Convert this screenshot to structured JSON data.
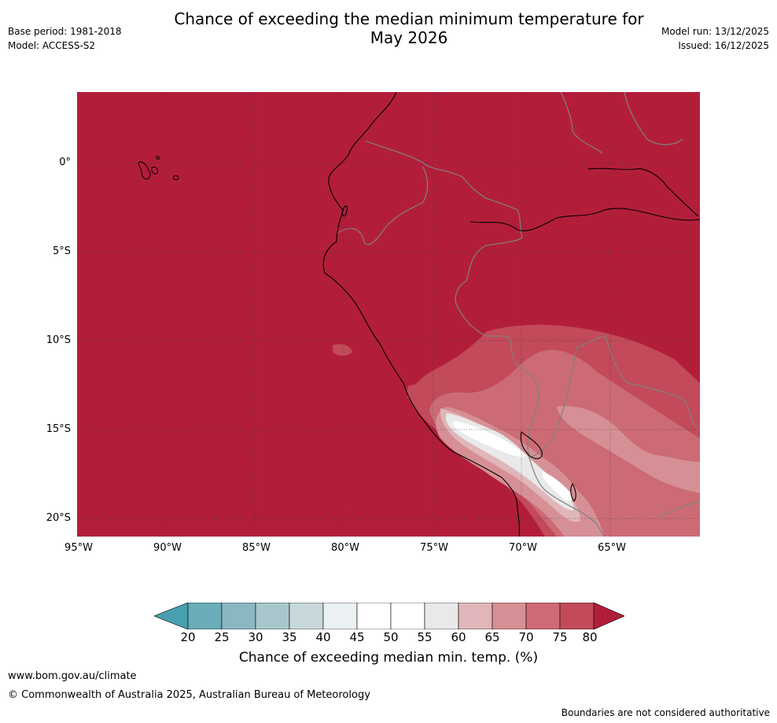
{
  "header": {
    "title_line1": "Chance of exceeding the median minimum temperature for",
    "title_line2": "May 2026",
    "base_period": "Base period: 1981-2018",
    "model": "Model: ACCESS-S2",
    "model_run": "Model run: 13/12/2025",
    "issued": "Issued: 16/12/2025"
  },
  "map": {
    "lat_labels": [
      "0°",
      "5°S",
      "10°S",
      "15°S",
      "20°S"
    ],
    "lon_labels": [
      "95°W",
      "90°W",
      "85°W",
      "80°W",
      "75°W",
      "70°W",
      "65°W"
    ],
    "colors": {
      "over80": "#b21e3a",
      "75_80": "#c24a5a",
      "70_75": "#cc6b75",
      "65_70": "#d69095",
      "60_65": "#e0b6ba",
      "55_60": "#e9e9e9",
      "50_55": "#ffffff",
      "45_50": "#ffffff",
      "40_45": "#ebf0f2",
      "35_40": "#c8d8da",
      "30_35": "#a8c7cc",
      "25_30": "#8ab8c2",
      "20_25": "#6aadb8",
      "under20": "#48a0ae",
      "coastline": "#000000",
      "borders": "#808080"
    }
  },
  "colorbar": {
    "ticks": [
      "20",
      "25",
      "30",
      "35",
      "40",
      "45",
      "50",
      "55",
      "60",
      "65",
      "70",
      "75",
      "80"
    ],
    "label": "Chance of exceeding median min. temp. (%)"
  },
  "footer": {
    "website": "www.bom.gov.au/climate",
    "copyright": "© Commonwealth of Australia 2025, Australian Bureau of Meteorology",
    "disclaimer": "Boundaries are not considered authoritative"
  }
}
